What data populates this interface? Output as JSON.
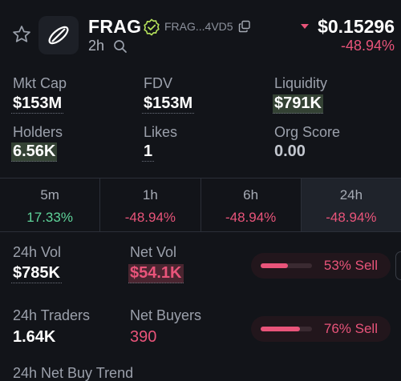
{
  "header": {
    "token_name": "FRAG",
    "address": "FRAG...4VD5",
    "age": "2h",
    "price": "$0.15296",
    "price_change": "-48.94%"
  },
  "stats": {
    "mkt_cap": {
      "label": "Mkt Cap",
      "value": "$153M"
    },
    "fdv": {
      "label": "FDV",
      "value": "$153M"
    },
    "liquidity": {
      "label": "Liquidity",
      "value": "$791K"
    },
    "holders": {
      "label": "Holders",
      "value": "6.56K"
    },
    "likes": {
      "label": "Likes",
      "value": "1"
    },
    "org_score": {
      "label": "Org Score",
      "value": "0.00"
    }
  },
  "timeframes": [
    {
      "label": "5m",
      "change": "17.33%"
    },
    {
      "label": "1h",
      "change": "-48.94%"
    },
    {
      "label": "6h",
      "change": "-48.94%"
    },
    {
      "label": "24h",
      "change": "-48.94%"
    }
  ],
  "volume": {
    "vol_label": "24h Vol",
    "vol_value": "$785K",
    "net_vol_label": "Net Vol",
    "net_vol_value": "$54.1K",
    "sell_pct_text": "53% Sell",
    "sell_fraction": 0.53
  },
  "traders": {
    "traders_label": "24h Traders",
    "traders_value": "1.64K",
    "net_buyers_label": "Net Buyers",
    "net_buyers_value": "390",
    "sell_pct_text": "76% Sell",
    "sell_fraction": 0.76
  },
  "trend": {
    "label": "24h Net Buy Trend"
  },
  "colors": {
    "positive": "#5fd49a",
    "negative": "#e9547a",
    "verified": "#b6e35b",
    "background": "#121419"
  },
  "icons": [
    "star-icon",
    "token-logo-icon",
    "verified-icon",
    "copy-icon",
    "search-icon",
    "price-down-icon"
  ]
}
